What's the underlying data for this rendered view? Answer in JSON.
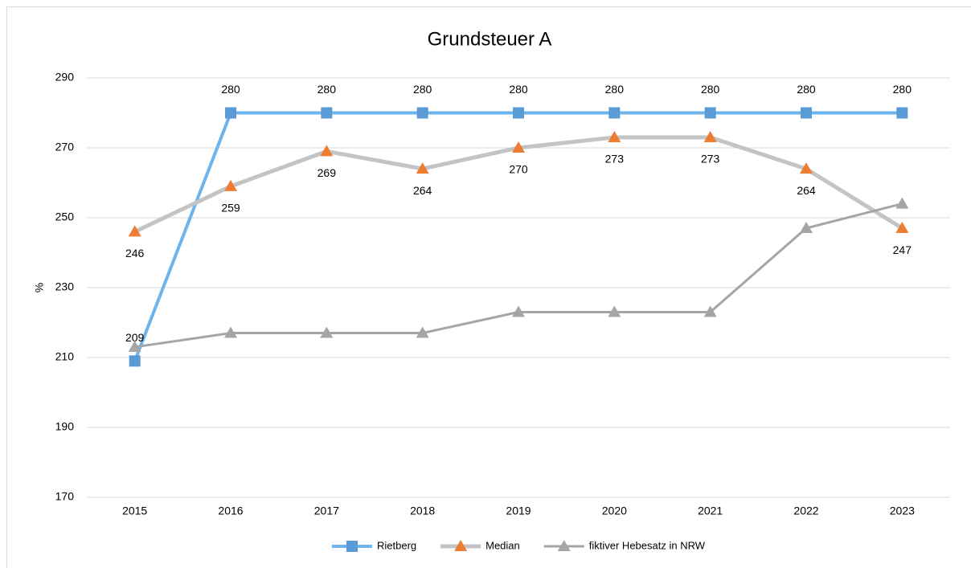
{
  "chart_data": {
    "type": "line",
    "title": "Grundsteuer A",
    "ylabel": "%",
    "categories": [
      "2015",
      "2016",
      "2017",
      "2018",
      "2019",
      "2020",
      "2021",
      "2022",
      "2023"
    ],
    "series": [
      {
        "name": "Rietberg",
        "color": "#6cb4ee",
        "marker_color": "#5b9bd5",
        "marker": "square",
        "line_width": 4,
        "data_labels": "above",
        "values": [
          209,
          280,
          280,
          280,
          280,
          280,
          280,
          280,
          280
        ]
      },
      {
        "name": "Median",
        "color": "#c4c4c4",
        "marker_color": "#ed7d31",
        "marker": "triangle",
        "line_width": 5,
        "data_labels": "below",
        "values": [
          246,
          259,
          269,
          264,
          270,
          273,
          273,
          264,
          247
        ]
      },
      {
        "name": "fiktiver Hebesatz in NRW",
        "color": "#a5a5a5",
        "marker_color": "#a5a5a5",
        "marker": "triangle",
        "line_width": 3,
        "values": [
          213,
          217,
          217,
          217,
          223,
          223,
          223,
          247,
          254
        ]
      }
    ],
    "ylim": [
      170,
      290
    ],
    "yticks": [
      170,
      190,
      210,
      230,
      250,
      270,
      290
    ],
    "grid": true,
    "legend": "bottom"
  }
}
